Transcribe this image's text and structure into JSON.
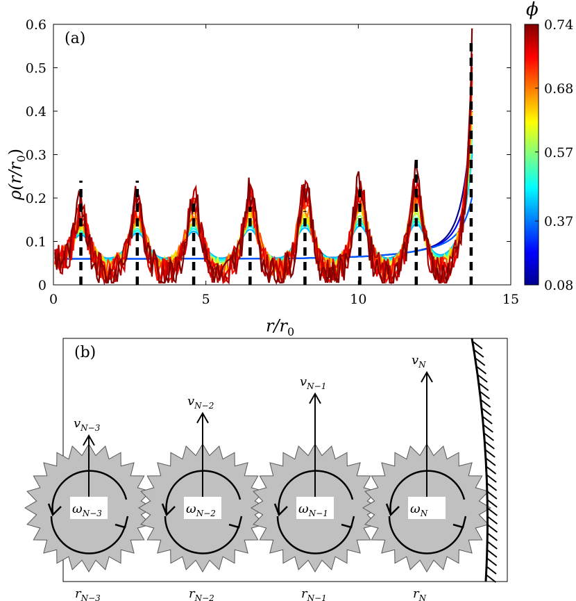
{
  "chart_data": {
    "type": "line",
    "panel_label": "(a)",
    "xlabel": "r/r",
    "xlabel_sub": "0",
    "ylabel": "ρ(r/r",
    "ylabel_sub": "0",
    "ylabel_close": ")",
    "xlim": [
      0,
      15
    ],
    "ylim": [
      0,
      0.6
    ],
    "xticks": [
      0,
      5,
      10,
      15
    ],
    "xtick_labels": [
      "0",
      "5",
      "10",
      "15"
    ],
    "yticks": [
      0,
      0.1,
      0.2,
      0.3,
      0.4,
      0.5,
      0.6
    ],
    "ytick_labels": [
      "0",
      "0.1",
      "0.2",
      "0.3",
      "0.4",
      "0.5",
      "0.6"
    ],
    "colorbar": {
      "label": "ϕ",
      "min": 0.08,
      "max": 0.74,
      "tick_values": [
        0.74,
        0.68,
        0.57,
        0.37,
        0.08
      ],
      "tick_labels": [
        "0.74",
        "0.68",
        "0.57",
        "0.37",
        "0.08"
      ]
    },
    "peak_positions": [
      0.9,
      2.75,
      4.6,
      6.45,
      8.25,
      10.05,
      11.9,
      13.7
    ],
    "peak_marker_tops": [
      0.24,
      0.24,
      0.2,
      0.18,
      0.17,
      0.22,
      0.3,
      0.57
    ],
    "series_phi": [
      0.08,
      0.15,
      0.22,
      0.28,
      0.33,
      0.37,
      0.42,
      0.47,
      0.52,
      0.57,
      0.61,
      0.65,
      0.68,
      0.71,
      0.74
    ]
  },
  "diagram": {
    "panel_label": "(b)",
    "particles": [
      {
        "omega_base": "ω",
        "omega_sub": "N−3",
        "v_base": "v",
        "v_sub": "N−3",
        "r_base": "r",
        "r_sub": "N−3",
        "v_magnitude": 0.35
      },
      {
        "omega_base": "ω",
        "omega_sub": "N−2",
        "v_base": "v",
        "v_sub": "N−2",
        "r_base": "r",
        "r_sub": "N−2",
        "v_magnitude": 0.58
      },
      {
        "omega_base": "ω",
        "omega_sub": "N−1",
        "v_base": "v",
        "v_sub": "N−1",
        "r_base": "r",
        "r_sub": "N−1",
        "v_magnitude": 0.78
      },
      {
        "omega_base": "ω",
        "omega_sub": "N",
        "v_base": "v",
        "v_sub": "N",
        "r_base": "r",
        "r_sub": "N",
        "v_magnitude": 1.0
      }
    ],
    "wall": "hatched-curved-boundary"
  }
}
